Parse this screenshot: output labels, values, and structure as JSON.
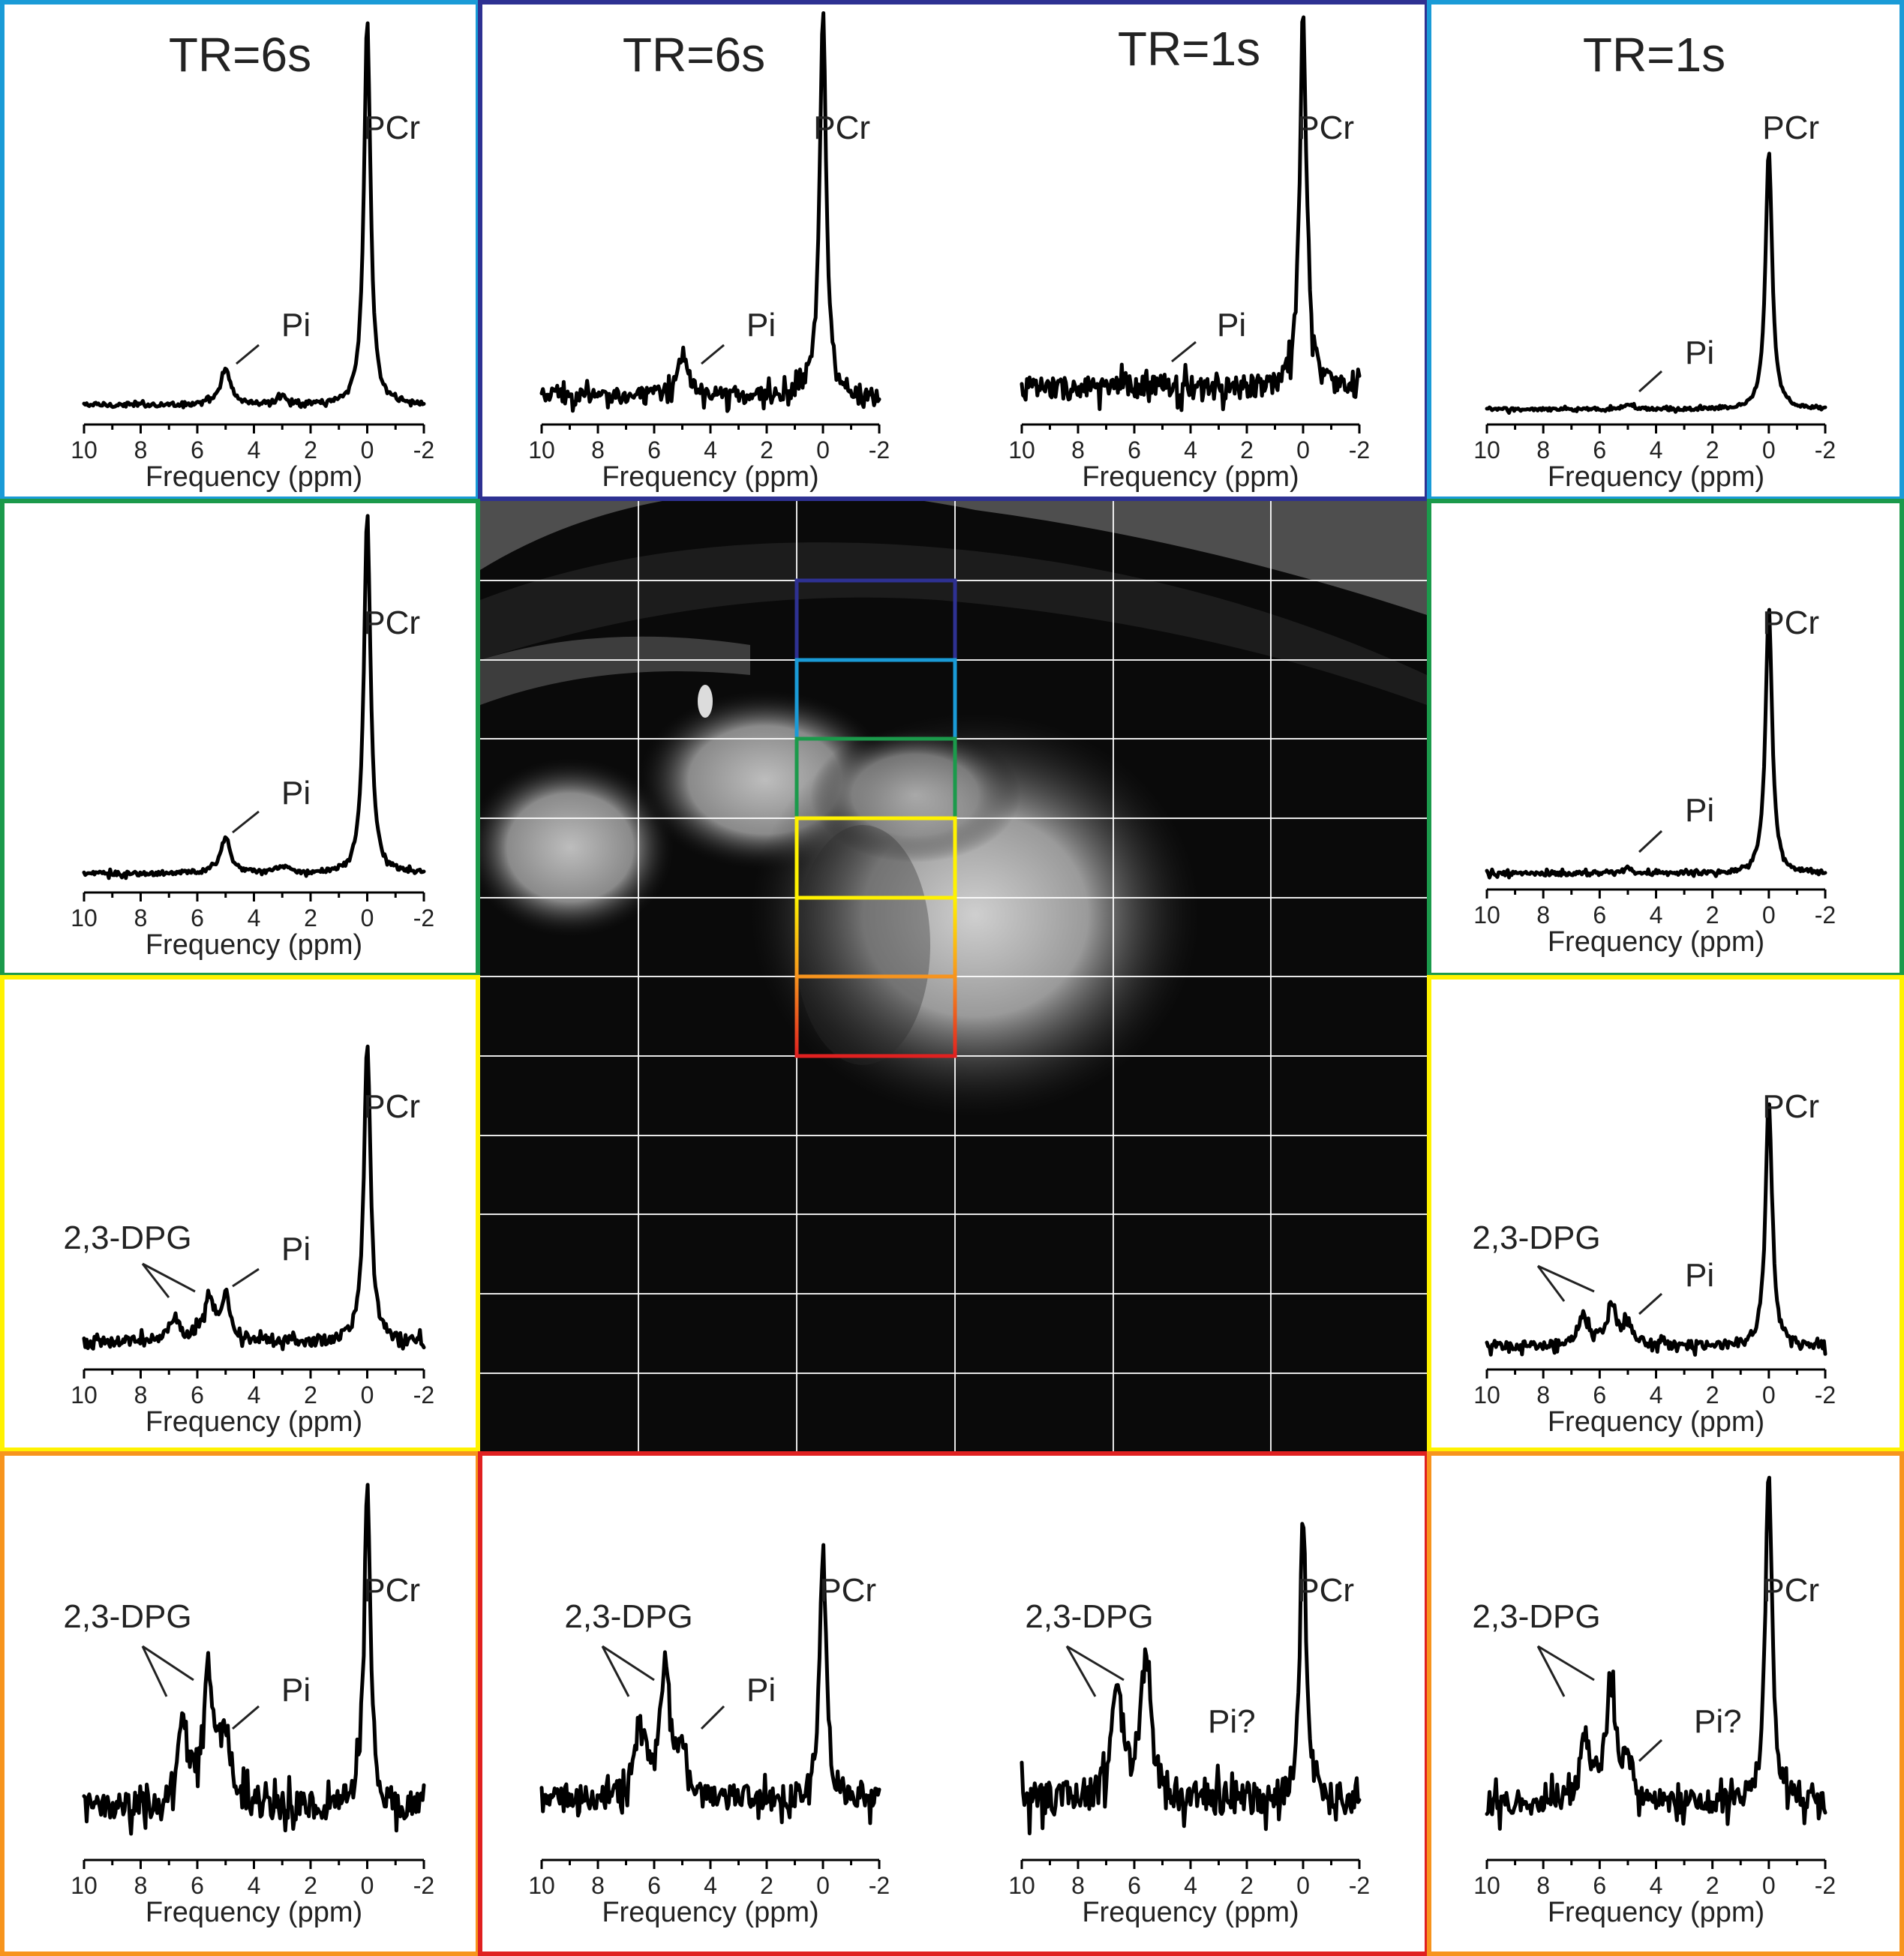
{
  "colors": {
    "tr6_top": "#1a9bd7",
    "top_center": "#2e3192",
    "tr1_top": "#1a9bd7",
    "green": "#1b9a4b",
    "yellow": "#fff200",
    "orange": "#f7941d",
    "red": "#e02020",
    "voxel_colors": [
      "#2e3192",
      "#1a9bd7",
      "#1b9a4b",
      "#fff200",
      "#f7941d",
      "#e02020"
    ]
  },
  "chart_data": [
    {
      "id": "p1",
      "type": "line",
      "title": "TR=6s",
      "xlabel": "Frequency (ppm)",
      "xlim": [
        10,
        -2
      ],
      "xticks": [
        "10",
        "8",
        "6",
        "4",
        "2",
        "0",
        "-2"
      ],
      "labels": [
        "PCr",
        "Pi"
      ],
      "peaks": [
        {
          "ppm": 0,
          "height": 1.0
        },
        {
          "ppm": 5.0,
          "height": 0.09
        },
        {
          "ppm": 3.0,
          "height": 0.02
        }
      ],
      "noise": 0.006
    },
    {
      "id": "p2",
      "type": "line",
      "title": "TR=6s",
      "xlabel": "Frequency (ppm)",
      "xlim": [
        10,
        -2
      ],
      "xticks": [
        "10",
        "8",
        "6",
        "4",
        "2",
        "0",
        "-2"
      ],
      "labels": [
        "PCr",
        "Pi"
      ],
      "peaks": [
        {
          "ppm": 0,
          "height": 1.0
        },
        {
          "ppm": 5.0,
          "height": 0.11
        }
      ],
      "noise": 0.02
    },
    {
      "id": "p3",
      "type": "line",
      "title": "TR=1s",
      "xlabel": "Frequency (ppm)",
      "xlim": [
        10,
        -2
      ],
      "xticks": [
        "10",
        "8",
        "6",
        "4",
        "2",
        "0",
        "-2"
      ],
      "labels": [
        "PCr",
        "Pi"
      ],
      "peaks": [
        {
          "ppm": 0,
          "height": 1.0
        },
        {
          "ppm": 5.0,
          "height": 0.02
        }
      ],
      "noise": 0.03
    },
    {
      "id": "p4",
      "type": "line",
      "title": "TR=1s",
      "xlabel": "Frequency (ppm)",
      "xlim": [
        10,
        -2
      ],
      "xticks": [
        "10",
        "8",
        "6",
        "4",
        "2",
        "0",
        "-2"
      ],
      "labels": [
        "PCr",
        "Pi"
      ],
      "peaks": [
        {
          "ppm": 0,
          "height": 1.0
        },
        {
          "ppm": 5.0,
          "height": 0.02
        }
      ],
      "noise": 0.006
    },
    {
      "id": "p5",
      "type": "line",
      "title": "",
      "xlabel": "Frequency (ppm)",
      "xlim": [
        10,
        -2
      ],
      "xticks": [
        "10",
        "8",
        "6",
        "4",
        "2",
        "0",
        "-2"
      ],
      "labels": [
        "PCr",
        "Pi"
      ],
      "peaks": [
        {
          "ppm": 0,
          "height": 1.0
        },
        {
          "ppm": 5.0,
          "height": 0.1
        },
        {
          "ppm": 3.0,
          "height": 0.02
        }
      ],
      "noise": 0.006
    },
    {
      "id": "p6",
      "type": "line",
      "title": "",
      "xlabel": "Frequency (ppm)",
      "xlim": [
        10,
        -2
      ],
      "xticks": [
        "10",
        "8",
        "6",
        "4",
        "2",
        "0",
        "-2"
      ],
      "labels": [
        "PCr",
        "Pi"
      ],
      "peaks": [
        {
          "ppm": 0,
          "height": 1.0
        },
        {
          "ppm": 5.0,
          "height": 0.02
        }
      ],
      "noise": 0.008
    },
    {
      "id": "p7",
      "type": "line",
      "title": "",
      "xlabel": "Frequency (ppm)",
      "xlim": [
        10,
        -2
      ],
      "xticks": [
        "10",
        "8",
        "6",
        "4",
        "2",
        "0",
        "-2"
      ],
      "labels": [
        "PCr",
        "2,3-DPG",
        "Pi"
      ],
      "peaks": [
        {
          "ppm": 0,
          "height": 1.0
        },
        {
          "ppm": 5.6,
          "height": 0.14
        },
        {
          "ppm": 5.0,
          "height": 0.14
        },
        {
          "ppm": 6.8,
          "height": 0.08
        }
      ],
      "noise": 0.018
    },
    {
      "id": "p8",
      "type": "line",
      "title": "",
      "xlabel": "Frequency (ppm)",
      "xlim": [
        10,
        -2
      ],
      "xticks": [
        "10",
        "8",
        "6",
        "4",
        "2",
        "0",
        "-2"
      ],
      "labels": [
        "PCr",
        "2,3-DPG",
        "Pi"
      ],
      "peaks": [
        {
          "ppm": 0,
          "height": 1.0
        },
        {
          "ppm": 5.6,
          "height": 0.15
        },
        {
          "ppm": 6.6,
          "height": 0.12
        },
        {
          "ppm": 5.0,
          "height": 0.08
        }
      ],
      "noise": 0.018
    },
    {
      "id": "p9",
      "type": "line",
      "title": "",
      "xlabel": "Frequency (ppm)",
      "xlim": [
        10,
        -2
      ],
      "xticks": [
        "10",
        "8",
        "6",
        "4",
        "2",
        "0",
        "-2"
      ],
      "labels": [
        "PCr",
        "2,3-DPG",
        "Pi"
      ],
      "peaks": [
        {
          "ppm": 0,
          "height": 1.0
        },
        {
          "ppm": 5.6,
          "height": 0.42
        },
        {
          "ppm": 6.5,
          "height": 0.28
        },
        {
          "ppm": 5.0,
          "height": 0.22
        }
      ],
      "noise": 0.045
    },
    {
      "id": "p10",
      "type": "line",
      "title": "",
      "xlabel": "Frequency (ppm)",
      "xlim": [
        10,
        -2
      ],
      "xticks": [
        "10",
        "8",
        "6",
        "4",
        "2",
        "0",
        "-2"
      ],
      "labels": [
        "PCr",
        "2,3-DPG",
        "Pi"
      ],
      "peaks": [
        {
          "ppm": 0,
          "height": 1.0
        },
        {
          "ppm": 5.6,
          "height": 0.52
        },
        {
          "ppm": 6.5,
          "height": 0.3
        },
        {
          "ppm": 5.0,
          "height": 0.2
        }
      ],
      "noise": 0.05
    },
    {
      "id": "p11",
      "type": "line",
      "title": "",
      "xlabel": "Frequency (ppm)",
      "xlim": [
        10,
        -2
      ],
      "xticks": [
        "10",
        "8",
        "6",
        "4",
        "2",
        "0",
        "-2"
      ],
      "labels": [
        "PCr",
        "2,3-DPG",
        "Pi?"
      ],
      "peaks": [
        {
          "ppm": 0,
          "height": 1.0
        },
        {
          "ppm": 5.6,
          "height": 0.48
        },
        {
          "ppm": 6.6,
          "height": 0.4
        }
      ],
      "noise": 0.06
    },
    {
      "id": "p12",
      "type": "line",
      "title": "",
      "xlabel": "Frequency (ppm)",
      "xlim": [
        10,
        -2
      ],
      "xticks": [
        "10",
        "8",
        "6",
        "4",
        "2",
        "0",
        "-2"
      ],
      "labels": [
        "PCr",
        "2,3-DPG",
        "Pi?"
      ],
      "peaks": [
        {
          "ppm": 0,
          "height": 1.0
        },
        {
          "ppm": 5.6,
          "height": 0.33
        },
        {
          "ppm": 6.5,
          "height": 0.18
        },
        {
          "ppm": 5.0,
          "height": 0.1
        }
      ],
      "noise": 0.035
    }
  ]
}
